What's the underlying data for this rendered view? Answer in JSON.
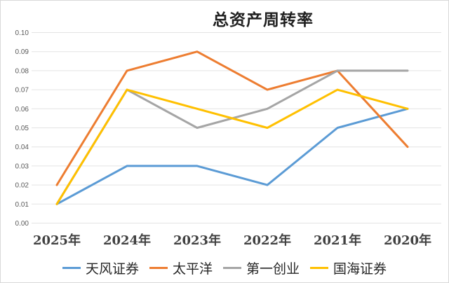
{
  "chart": {
    "background": "#FFFFFF",
    "border_color": "#D9D9D9"
  },
  "chart_data": {
    "type": "line",
    "title": "总资产周转率",
    "categories": [
      "2025年",
      "2024年",
      "2023年",
      "2022年",
      "2021年",
      "2020年"
    ],
    "series": [
      {
        "name": "天风证券",
        "color": "#5B9BD5",
        "values": [
          0.01,
          0.03,
          0.03,
          0.02,
          0.05,
          0.06
        ]
      },
      {
        "name": "太平洋",
        "color": "#ED7D31",
        "values": [
          0.02,
          0.08,
          0.09,
          0.07,
          0.08,
          0.04
        ]
      },
      {
        "name": "第一创业",
        "color": "#A5A5A5",
        "values": [
          0.01,
          0.07,
          0.05,
          0.06,
          0.08,
          0.08
        ]
      },
      {
        "name": "国海证券",
        "color": "#FFC000",
        "values": [
          0.01,
          0.07,
          0.06,
          0.05,
          0.07,
          0.06
        ]
      }
    ],
    "xlabel": "",
    "ylabel": "",
    "ylim": [
      0,
      0.1
    ],
    "ytick_step": 0.01,
    "ytick_labels": [
      "0.00",
      "0.01",
      "0.02",
      "0.03",
      "0.04",
      "0.05",
      "0.06",
      "0.07",
      "0.08",
      "0.09",
      "0.10"
    ],
    "grid": "horizontal",
    "gridline_color": "#E3E3E3",
    "legend_position": "bottom",
    "axis_tick_color": "#595959",
    "category_label_color": "#404040"
  }
}
